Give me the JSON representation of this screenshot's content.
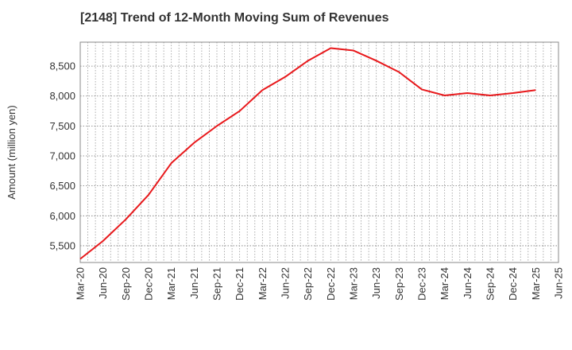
{
  "chart_data": {
    "type": "line",
    "title": "[2148]  Trend of 12-Month Moving Sum of Revenues",
    "ylabel": "Amount (million yen)",
    "xlabel": "",
    "ylim": [
      5220,
      8900
    ],
    "yticks": [
      5500,
      6000,
      6500,
      7000,
      7500,
      8000,
      8500
    ],
    "ytick_labels": [
      "5,500",
      "6,000",
      "6,500",
      "7,000",
      "7,500",
      "8,000",
      "8,500"
    ],
    "x_tick_labels": [
      "Mar-20",
      "Jun-20",
      "Sep-20",
      "Dec-20",
      "Mar-21",
      "Jun-21",
      "Sep-21",
      "Dec-21",
      "Mar-22",
      "Jun-22",
      "Sep-22",
      "Dec-22",
      "Mar-23",
      "Jun-23",
      "Sep-23",
      "Dec-23",
      "Mar-24",
      "Jun-24",
      "Sep-24",
      "Dec-24",
      "Mar-25",
      "Jun-25"
    ],
    "grid": true,
    "series": [
      {
        "name": "",
        "color": "#e8191c",
        "x": [
          "Mar-20",
          "Jun-20",
          "Sep-20",
          "Dec-20",
          "Mar-21",
          "Jun-21",
          "Sep-21",
          "Dec-21",
          "Mar-22",
          "Jun-22",
          "Sep-22",
          "Dec-22",
          "Mar-23",
          "Jun-23",
          "Sep-23",
          "Dec-23",
          "Mar-24",
          "Jun-24",
          "Sep-24",
          "Dec-24",
          "Mar-25"
        ],
        "values": [
          5280,
          5580,
          5940,
          6350,
          6880,
          7220,
          7500,
          7750,
          8100,
          8320,
          8590,
          8800,
          8760,
          8590,
          8400,
          8110,
          8010,
          8050,
          8010,
          8050,
          8100
        ]
      }
    ]
  }
}
